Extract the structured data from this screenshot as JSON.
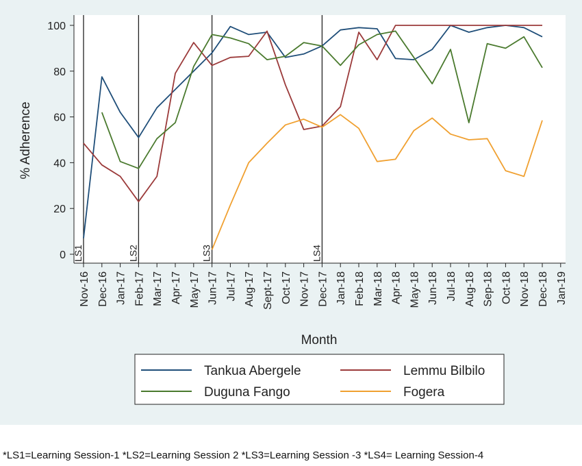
{
  "chart_data": {
    "type": "line",
    "xlabel": "Month",
    "ylabel": "% Adherence",
    "ylim": [
      0,
      100
    ],
    "yticks": [
      0,
      20,
      40,
      60,
      80,
      100
    ],
    "x_tick_labels": [
      "Nov-16",
      "Dec-16",
      "Jan-17",
      "Feb-17",
      "Mar-17",
      "Apr-17",
      "May-17",
      "Jun-17",
      "Jul-17",
      "Aug-17",
      "Sept-17",
      "Oct-17",
      "Nov-17",
      "Dec-17",
      "Jan-18",
      "Feb-18",
      "Mar-18",
      "Apr-18",
      "May-18",
      "Jun-18",
      "Jul-18",
      "Aug-18",
      "Sep-18",
      "Oct-18",
      "Nov-18",
      "Dec-18",
      "Jan-19"
    ],
    "grid": false,
    "legend_position": "bottom",
    "series": [
      {
        "name": "Tankua Abergele",
        "color": "#1f4e79",
        "start_index": 0,
        "values": [
          7,
          77.5,
          62,
          51,
          64,
          72,
          80,
          88,
          99.5,
          96,
          97,
          86,
          87.5,
          91,
          98,
          99,
          98.5,
          85.5,
          85,
          89.5,
          100,
          97,
          99,
          100,
          99,
          95
        ]
      },
      {
        "name": "Lemmu Bilbilo",
        "color": "#9b3a3a",
        "start_index": 0,
        "values": [
          48.5,
          39,
          34,
          23,
          34,
          79,
          92.5,
          82.5,
          86,
          86.5,
          97.5,
          74,
          54.5,
          56,
          64.5,
          97,
          85,
          100,
          100,
          100,
          100,
          100,
          100,
          100,
          100,
          100
        ]
      },
      {
        "name": "Duguna Fango",
        "color": "#4a7a2e",
        "start_index": 1,
        "values": [
          62,
          40.5,
          37.5,
          50.5,
          57.5,
          82,
          96,
          94.5,
          92,
          85,
          86.5,
          92.5,
          91,
          82.5,
          91.5,
          96,
          97.5,
          86,
          74.5,
          89.5,
          57.5,
          92,
          90,
          95,
          81.5
        ]
      },
      {
        "name": "Fogera",
        "color": "#f0a030",
        "start_index": 7,
        "values": [
          2,
          21.5,
          40,
          48.5,
          56.5,
          59,
          55.5,
          61,
          55,
          40.5,
          41.5,
          54,
          59.5,
          52.5,
          50,
          50.5,
          36.5,
          34,
          58.5
        ]
      }
    ],
    "learning_sessions": [
      {
        "label": "LS1",
        "index": 0
      },
      {
        "label": "LS2",
        "index": 3
      },
      {
        "label": "LS3",
        "index": 7
      },
      {
        "label": "LS4",
        "index": 13
      }
    ]
  },
  "footnote": "*LS1=Learning Session-1 *LS2=Learning Session 2 *LS3=Learning Session -3   *LS4= Learning Session-4"
}
